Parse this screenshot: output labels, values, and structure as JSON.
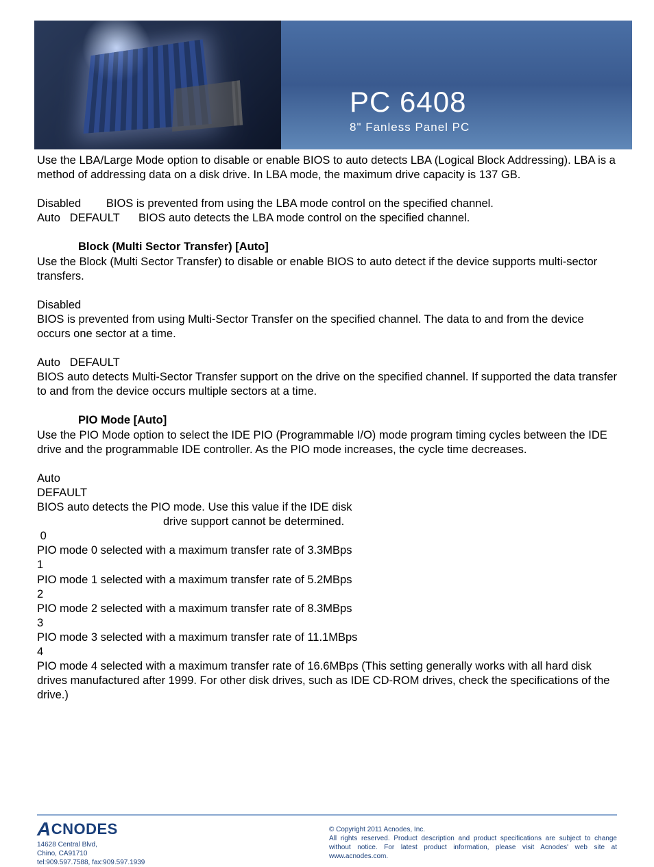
{
  "header": {
    "title": "PC 6408",
    "subtitle": "8\" Fanless Panel PC",
    "banner_bg_colors": [
      "#4a6fa5",
      "#3a5a8f",
      "#6088b8"
    ]
  },
  "lba": {
    "intro": " Use the LBA/Large Mode option to disable or enable BIOS to auto detects LBA (Logical Block Addressing). LBA is a method of addressing data on a disk drive. In LBA mode, the maximum drive capacity is 137 GB.",
    "disabled_line": "Disabled        BIOS is prevented from using the LBA mode control on the specified channel.",
    "auto_line": "Auto   DEFAULT      BIOS auto detects the LBA mode control on the specified channel."
  },
  "block": {
    "heading": "Block (Multi Sector Transfer) [Auto]",
    "intro": "Use the Block (Multi Sector Transfer) to disable or enable BIOS to auto detect if the device supports multi-sector transfers.",
    "disabled_label": "Disabled",
    "disabled_desc": "BIOS is prevented from using Multi-Sector Transfer on the specified channel. The data to and from the device occurs one sector at a time.",
    "auto_label": "Auto   DEFAULT",
    "auto_desc": "BIOS auto detects Multi-Sector Transfer support on the drive on  the  specified  channel.  If  supported the  data transfer to and from the device occurs multiple sectors at a time."
  },
  "pio": {
    "heading": "PIO Mode [Auto]",
    "intro": "Use the PIO Mode option to select the IDE PIO (Programmable I/O) mode program timing cycles between the IDE drive and the programmable IDE controller. As the PIO mode increases, the cycle time decreases.",
    "auto_label": "Auto",
    "default_label": "DEFAULT",
    "auto_desc_l1": "BIOS auto detects the PIO mode. Use this value if the IDE disk",
    "auto_desc_l2": "drive support cannot be determined.",
    "m0_num": " 0",
    "m0": "PIO mode 0 selected with a maximum transfer rate of 3.3MBps",
    "m1_num": "1",
    "m1": "PIO mode 1 selected with a maximum transfer rate of 5.2MBps",
    "m2_num": "2",
    "m2": "PIO mode 2 selected with a maximum transfer rate of 8.3MBps",
    "m3_num": "3",
    "m3": "PIO mode 3 selected with a maximum transfer rate of 11.1MBps",
    "m4_num": "4",
    "m4": "PIO mode 4 selected with a maximum transfer rate of 16.6MBps (This  setting  generally  works  with all  hard  disk  drives manufactured after 1999. For other disk drives, such as IDE CD-ROM drives, check the specifications of the drive.)"
  },
  "footer": {
    "brand": "CNODES",
    "addr1": "14628 Central Blvd,",
    "addr2": "Chino, CA91710",
    "addr3": "tel:909.597.7588, fax:909.597.1939",
    "copyright": "© Copyright 2011 Acnodes, Inc.",
    "legal": "All rights reserved. Product description and product specifications are subject to change without notice. For latest product information, please visit Acnodes' web site at www.acnodes.com.",
    "rule_color": "#8aa8d0",
    "text_color": "#1a3f7a"
  }
}
